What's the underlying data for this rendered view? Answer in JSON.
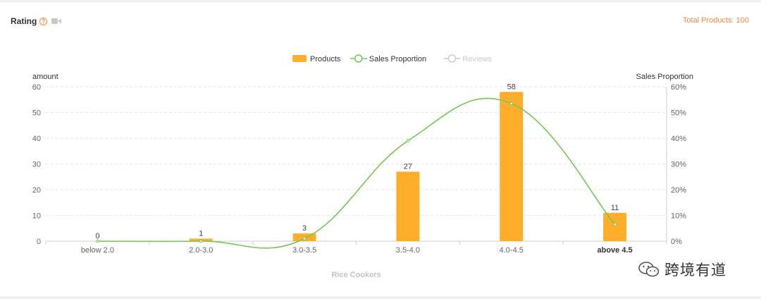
{
  "header": {
    "title": "Rating",
    "total_products": "Total Products: 100"
  },
  "icons": {
    "help": "help-icon",
    "video": "video-camera-icon"
  },
  "colors": {
    "bar": "#ffae2c",
    "line": "#73c853",
    "reviews": "#cccccc",
    "accent": "#f0883e",
    "axis_text": "#666666",
    "grid": "#e6e6e6"
  },
  "watermark": "跨境有道",
  "chart_data": {
    "type": "bar",
    "title": "",
    "legend": [
      {
        "name": "Products",
        "kind": "bar"
      },
      {
        "name": "Sales Proportion",
        "kind": "line"
      },
      {
        "name": "Reviews",
        "kind": "line",
        "disabled": true
      }
    ],
    "legend_position": "top-center",
    "categories": [
      "below 2.0",
      "2.0-3.0",
      "3.0-3.5",
      "3.5-4.0",
      "4.0-4.5",
      "above 4.5"
    ],
    "series": [
      {
        "name": "Products",
        "type": "bar",
        "axis": "left",
        "values": [
          0,
          1,
          3,
          27,
          58,
          11
        ]
      },
      {
        "name": "Sales Proportion",
        "type": "line",
        "axis": "right",
        "smooth": true,
        "values": [
          0,
          0,
          1,
          39,
          53.5,
          6.5
        ]
      }
    ],
    "xlabel": "Rice Cookers",
    "ylabel_left": "amount",
    "ylabel_right": "Sales Proportion",
    "ylim_left": [
      0,
      60
    ],
    "ylim_right": [
      0,
      60
    ],
    "yticks_left": [
      "0",
      "10",
      "20",
      "30",
      "40",
      "50",
      "60"
    ],
    "yticks_right": [
      "0%",
      "10%",
      "20%",
      "30%",
      "40%",
      "50%",
      "60%"
    ],
    "grid": true
  }
}
